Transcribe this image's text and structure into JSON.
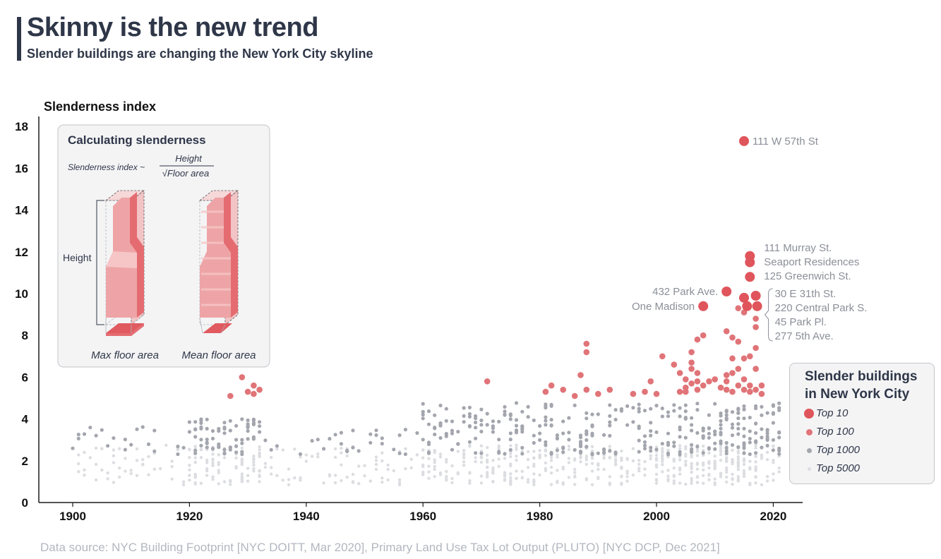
{
  "header": {
    "title": "Skinny is the new trend",
    "subtitle": "Slender buildings are changing the New York City skyline"
  },
  "footer": {
    "source": "Data source: NYC Building Footprint [NYC DOITT, Mar 2020], Primary Land Use Tax Lot Output (PLUTO) [NYC DCP, Dec 2021]"
  },
  "inset": {
    "title": "Calculating slenderness",
    "formula_lhs": "Slenderness index ~",
    "formula_num": "Height",
    "formula_den": "√Floor area",
    "height_label": "Height",
    "left_caption": "Max floor area",
    "right_caption": "Mean floor area"
  },
  "legend": {
    "title": "Slender buildings in New York City",
    "items": [
      {
        "label": "Top 10",
        "color": "#e0555c",
        "size": "large"
      },
      {
        "label": "Top 100",
        "color": "#e07478",
        "size": "medium"
      },
      {
        "label": "Top 1000",
        "color": "#a4a6ae",
        "size": "small"
      },
      {
        "label": "Top 5000",
        "color": "#dcdde1",
        "size": "tiny"
      }
    ]
  },
  "colors": {
    "top10": "#e0555c",
    "top100": "#e07478",
    "top1000": "#a4a6ae",
    "top5000": "#dcdde1",
    "label_gray": "#8b8f98",
    "axis": "#1b1b1b"
  },
  "chart_data": {
    "type": "scatter",
    "ylabel": "Slenderness index",
    "xlabel": "",
    "xlim": [
      1895,
      2025
    ],
    "ylim": [
      0,
      18.5
    ],
    "xticks": [
      1900,
      1920,
      1940,
      1960,
      1980,
      2000,
      2020
    ],
    "yticks": [
      0,
      2,
      4,
      6,
      8,
      10,
      12,
      14,
      16,
      18
    ],
    "series": [
      {
        "name": "Top 10",
        "points": [
          {
            "x": 2015,
            "y": 17.3
          },
          {
            "x": 2016,
            "y": 11.8
          },
          {
            "x": 2016,
            "y": 11.5
          },
          {
            "x": 2016,
            "y": 10.8
          },
          {
            "x": 2012,
            "y": 10.1
          },
          {
            "x": 2015,
            "y": 9.8
          },
          {
            "x": 2017,
            "y": 9.9
          },
          {
            "x": 2017,
            "y": 9.4
          },
          {
            "x": 2016,
            "y": 9.4
          },
          {
            "x": 2008,
            "y": 9.4
          }
        ]
      },
      {
        "name": "Top 100",
        "points": [
          {
            "x": 1927,
            "y": 5.1
          },
          {
            "x": 1929,
            "y": 6.0
          },
          {
            "x": 1930,
            "y": 5.3
          },
          {
            "x": 1931,
            "y": 5.6
          },
          {
            "x": 1931,
            "y": 5.2
          },
          {
            "x": 1932,
            "y": 5.4
          },
          {
            "x": 1971,
            "y": 5.8
          },
          {
            "x": 1981,
            "y": 5.3
          },
          {
            "x": 1982,
            "y": 5.6
          },
          {
            "x": 1984,
            "y": 5.4
          },
          {
            "x": 1986,
            "y": 5.1
          },
          {
            "x": 1987,
            "y": 6.1
          },
          {
            "x": 1988,
            "y": 7.6
          },
          {
            "x": 1988,
            "y": 7.2
          },
          {
            "x": 1988,
            "y": 5.4
          },
          {
            "x": 1990,
            "y": 5.2
          },
          {
            "x": 1992,
            "y": 5.4
          },
          {
            "x": 1996,
            "y": 5.2
          },
          {
            "x": 1998,
            "y": 5.3
          },
          {
            "x": 1999,
            "y": 5.8
          },
          {
            "x": 2000,
            "y": 5.2
          },
          {
            "x": 2001,
            "y": 7.0
          },
          {
            "x": 2003,
            "y": 6.6
          },
          {
            "x": 2004,
            "y": 5.3
          },
          {
            "x": 2004,
            "y": 6.2
          },
          {
            "x": 2005,
            "y": 5.3
          },
          {
            "x": 2005,
            "y": 5.9
          },
          {
            "x": 2005,
            "y": 5.5
          },
          {
            "x": 2006,
            "y": 7.2
          },
          {
            "x": 2006,
            "y": 6.7
          },
          {
            "x": 2006,
            "y": 6.4
          },
          {
            "x": 2006,
            "y": 5.7
          },
          {
            "x": 2007,
            "y": 7.8
          },
          {
            "x": 2007,
            "y": 6.2
          },
          {
            "x": 2007,
            "y": 5.8
          },
          {
            "x": 2007,
            "y": 5.4
          },
          {
            "x": 2008,
            "y": 8.0
          },
          {
            "x": 2008,
            "y": 5.6
          },
          {
            "x": 2009,
            "y": 5.8
          },
          {
            "x": 2010,
            "y": 5.9
          },
          {
            "x": 2011,
            "y": 5.5
          },
          {
            "x": 2012,
            "y": 8.2
          },
          {
            "x": 2012,
            "y": 6.1
          },
          {
            "x": 2012,
            "y": 5.8
          },
          {
            "x": 2012,
            "y": 5.4
          },
          {
            "x": 2013,
            "y": 6.9
          },
          {
            "x": 2013,
            "y": 6.2
          },
          {
            "x": 2013,
            "y": 5.3
          },
          {
            "x": 2013,
            "y": 7.9
          },
          {
            "x": 2014,
            "y": 9.3
          },
          {
            "x": 2014,
            "y": 7.7
          },
          {
            "x": 2014,
            "y": 6.4
          },
          {
            "x": 2014,
            "y": 5.6
          },
          {
            "x": 2015,
            "y": 9.1
          },
          {
            "x": 2015,
            "y": 6.9
          },
          {
            "x": 2015,
            "y": 5.9
          },
          {
            "x": 2015,
            "y": 5.4
          },
          {
            "x": 2016,
            "y": 7.0
          },
          {
            "x": 2016,
            "y": 5.6
          },
          {
            "x": 2016,
            "y": 5.3
          },
          {
            "x": 2017,
            "y": 8.8
          },
          {
            "x": 2017,
            "y": 8.4
          },
          {
            "x": 2017,
            "y": 7.4
          },
          {
            "x": 2017,
            "y": 6.4
          },
          {
            "x": 2017,
            "y": 5.4
          },
          {
            "x": 2018,
            "y": 5.6
          },
          {
            "x": 2018,
            "y": 5.2
          }
        ]
      },
      {
        "name": "Top 1000",
        "points": []
      },
      {
        "name": "Top 5000",
        "points": []
      }
    ],
    "annotations": [
      {
        "text": "111 W 57th St",
        "x": 2015,
        "y": 17.3,
        "side": "right"
      },
      {
        "text": "111 Murray St.",
        "x": 2016,
        "y": 11.8,
        "side": "right"
      },
      {
        "text": "Seaport Residences",
        "x": 2016,
        "y": 11.5,
        "side": "right"
      },
      {
        "text": "125 Greenwich St.",
        "x": 2016,
        "y": 10.8,
        "side": "right"
      },
      {
        "text": "432 Park Ave.",
        "x": 2012,
        "y": 10.1,
        "side": "left"
      },
      {
        "text": "One Madison",
        "x": 2008,
        "y": 9.4,
        "side": "left"
      },
      {
        "text": "30 E 31th St.",
        "x": 2017,
        "y": 9.9,
        "side": "bracket"
      },
      {
        "text": "220 Central Park S.",
        "x": 2017,
        "y": 9.4,
        "side": "bracket"
      },
      {
        "text": "45 Park Pl.",
        "x": 2017,
        "y": 9.4,
        "side": "bracket"
      },
      {
        "text": "277 5th Ave.",
        "x": 2017,
        "y": 9.4,
        "side": "bracket"
      }
    ],
    "grid": false,
    "legend_position": "bottom-right"
  }
}
